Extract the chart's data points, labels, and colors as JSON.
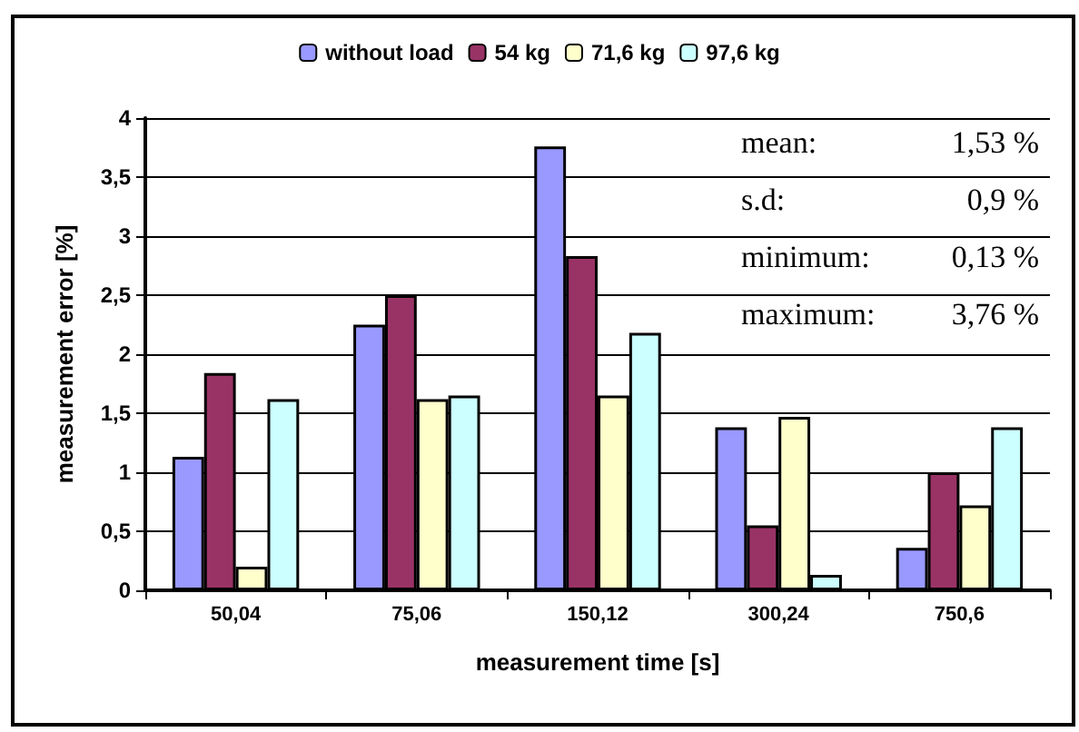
{
  "chart_data": {
    "type": "bar",
    "xlabel": "measurement time [s]",
    "ylabel": "measurement error [%]",
    "categories": [
      "50,04",
      "75,06",
      "150,12",
      "300,24",
      "750,6"
    ],
    "series": [
      {
        "name": "without load",
        "color": "#9999ff",
        "values": [
          1.13,
          2.25,
          3.76,
          1.38,
          0.36
        ]
      },
      {
        "name": "54 kg",
        "color": "#993366",
        "values": [
          1.84,
          2.5,
          2.83,
          0.55,
          1.0
        ]
      },
      {
        "name": "71,6 kg",
        "color": "#ffffcc",
        "values": [
          0.2,
          1.62,
          1.65,
          1.47,
          0.72
        ]
      },
      {
        "name": "97,6 kg",
        "color": "#ccffff",
        "values": [
          1.62,
          1.65,
          2.18,
          0.13,
          1.38
        ]
      }
    ],
    "ylim": [
      0,
      4
    ],
    "yticks": [
      0,
      {
        "value": 0.5,
        "label": "0,5"
      },
      1,
      {
        "value": 1.5,
        "label": "1,5"
      },
      2,
      {
        "value": 2.5,
        "label": "2,5"
      },
      3,
      {
        "value": 3.5,
        "label": "3,5"
      },
      4
    ],
    "grid": "y",
    "legend": "top",
    "annotations": [
      "mean:",
      "1,53 %",
      "s.d:",
      "0,9 %",
      "minimum:",
      "0,13 %",
      "maximum:",
      "3,76 %"
    ]
  }
}
